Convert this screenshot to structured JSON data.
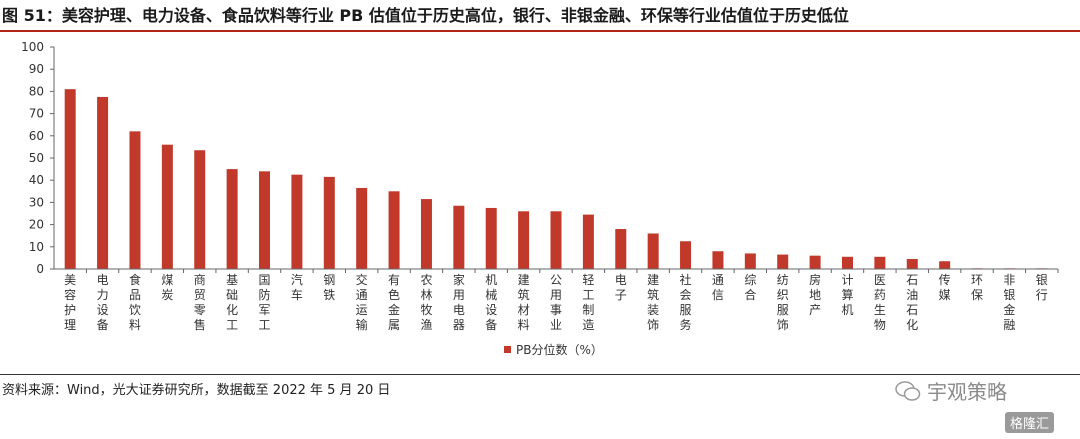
{
  "title": "图 51：美容护理、电力设备、食品饮料等行业 PB 估值位于历史高位，银行、非银金融、环保等行业估值位于历史低位",
  "source": "资料来源：Wind，光大证券研究所，数据截至 2022 年 5 月 20 日",
  "watermark": "宇观策略",
  "watermark2": "格隆汇",
  "colors": {
    "bar": "#c0392b",
    "accent": "#b02318"
  },
  "chart_data": {
    "type": "bar",
    "categories": [
      "美容护理",
      "电力设备",
      "食品饮料",
      "煤炭",
      "商贸零售",
      "基础化工",
      "国防军工",
      "汽车",
      "钢铁",
      "交通运输",
      "有色金属",
      "农林牧渔",
      "家用电器",
      "机械设备",
      "建筑材料",
      "公用事业",
      "轻工制造",
      "电子",
      "建筑装饰",
      "社会服务",
      "通信",
      "综合",
      "纺织服饰",
      "房地产",
      "计算机",
      "医药生物",
      "石油石化",
      "传媒",
      "环保",
      "非银金融",
      "银行"
    ],
    "series": [
      {
        "name": "PB分位数（%）",
        "values": [
          81,
          77.5,
          62,
          56,
          53.5,
          45,
          44,
          42.5,
          41.5,
          36.5,
          35,
          31.5,
          28.5,
          27.5,
          26,
          26,
          24.5,
          18,
          16,
          12.5,
          8,
          7,
          6.5,
          6,
          5.5,
          5.5,
          4.5,
          3.5,
          0.3,
          0.3,
          0.3
        ]
      }
    ],
    "yticks": [
      "0",
      "10",
      "20",
      "30",
      "40",
      "50",
      "60",
      "70",
      "80",
      "90",
      "100"
    ],
    "ylim": [
      0,
      100
    ],
    "legend_position": "bottom-center",
    "grid": false
  }
}
